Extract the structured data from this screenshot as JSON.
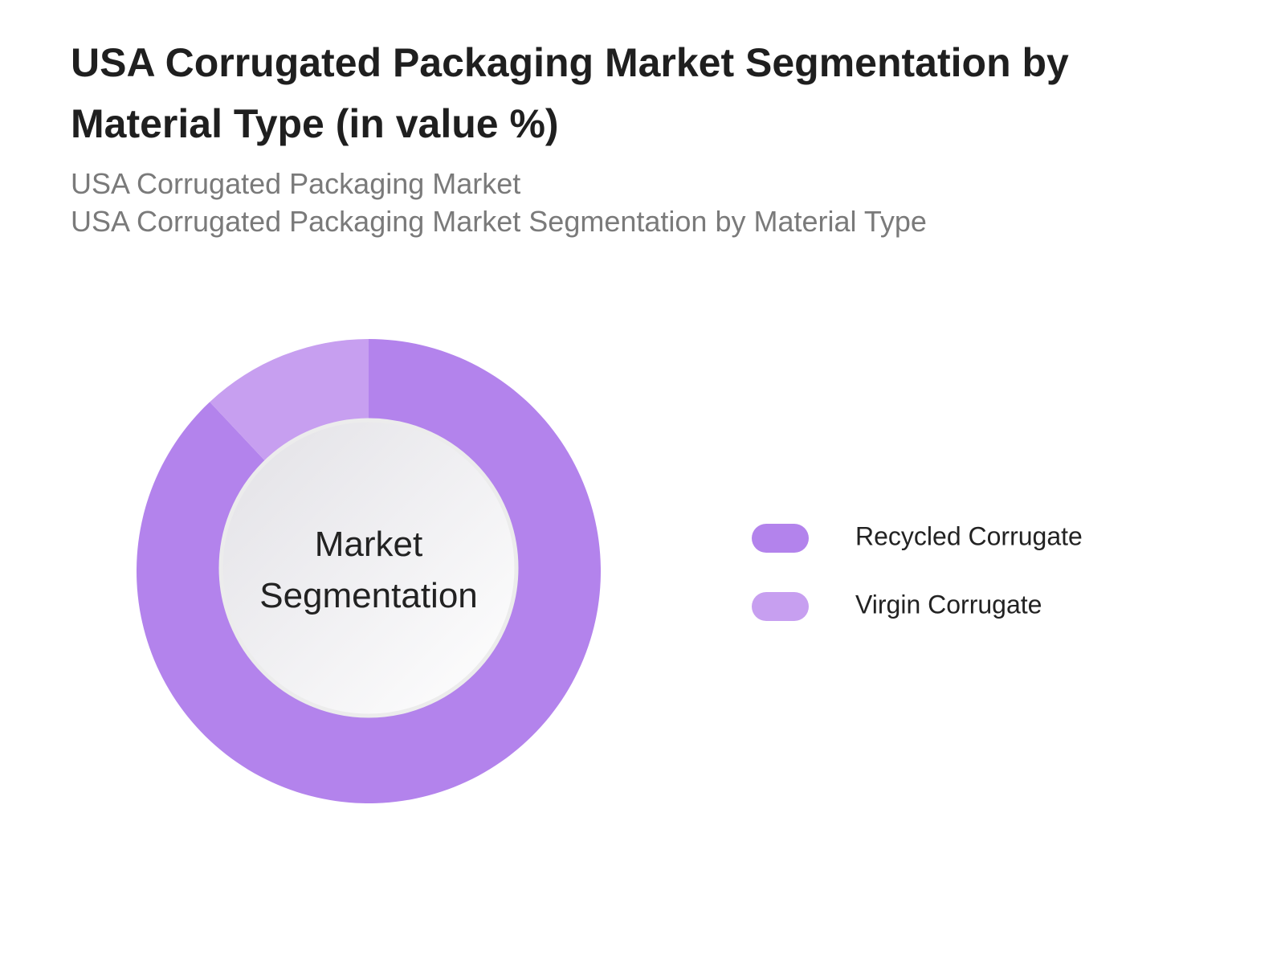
{
  "chart_data": {
    "type": "donut",
    "title": "USA Corrugated Packaging Market Segmentation by Material Type (in value %)",
    "subtitles": [
      "USA Corrugated Packaging Market",
      "USA Corrugated Packaging Market Segmentation by Material Type"
    ],
    "center_label": "Market Segmentation",
    "categories": [
      "Recycled Corrugate",
      "Virgin Corrugate"
    ],
    "values": [
      88,
      12
    ],
    "colors": [
      "#b383ec",
      "#c79ff0"
    ]
  }
}
